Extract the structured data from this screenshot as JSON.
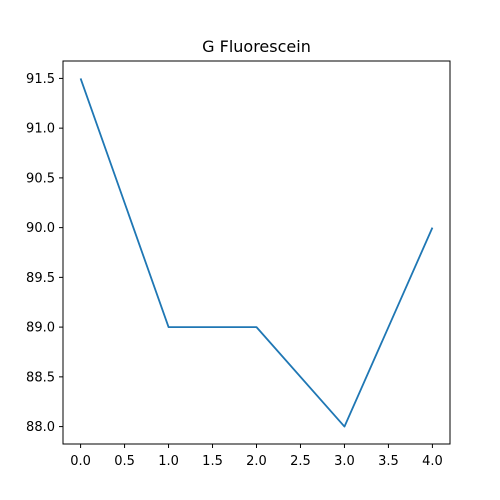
{
  "chart_data": {
    "type": "line",
    "title": "G Fluorescein",
    "xlabel": "",
    "ylabel": "",
    "x": [
      0,
      1,
      2,
      3,
      4
    ],
    "series": [
      {
        "name": "G Fluorescein",
        "values": [
          91.5,
          89.0,
          89.0,
          88.0,
          90.0
        ],
        "color": "#1f77b4"
      }
    ],
    "xlim": [
      -0.2,
      4.2
    ],
    "ylim": [
      87.825,
      91.675
    ],
    "xticks": [
      0.0,
      0.5,
      1.0,
      1.5,
      2.0,
      2.5,
      3.0,
      3.5,
      4.0
    ],
    "xtick_labels": [
      "0.0",
      "0.5",
      "1.0",
      "1.5",
      "2.0",
      "2.5",
      "3.0",
      "3.5",
      "4.0"
    ],
    "yticks": [
      88.0,
      88.5,
      89.0,
      89.5,
      90.0,
      90.5,
      91.0,
      91.5
    ],
    "ytick_labels": [
      "88.0",
      "88.5",
      "89.0",
      "89.5",
      "90.0",
      "90.5",
      "91.0",
      "91.5"
    ],
    "grid": false,
    "legend": "none"
  }
}
